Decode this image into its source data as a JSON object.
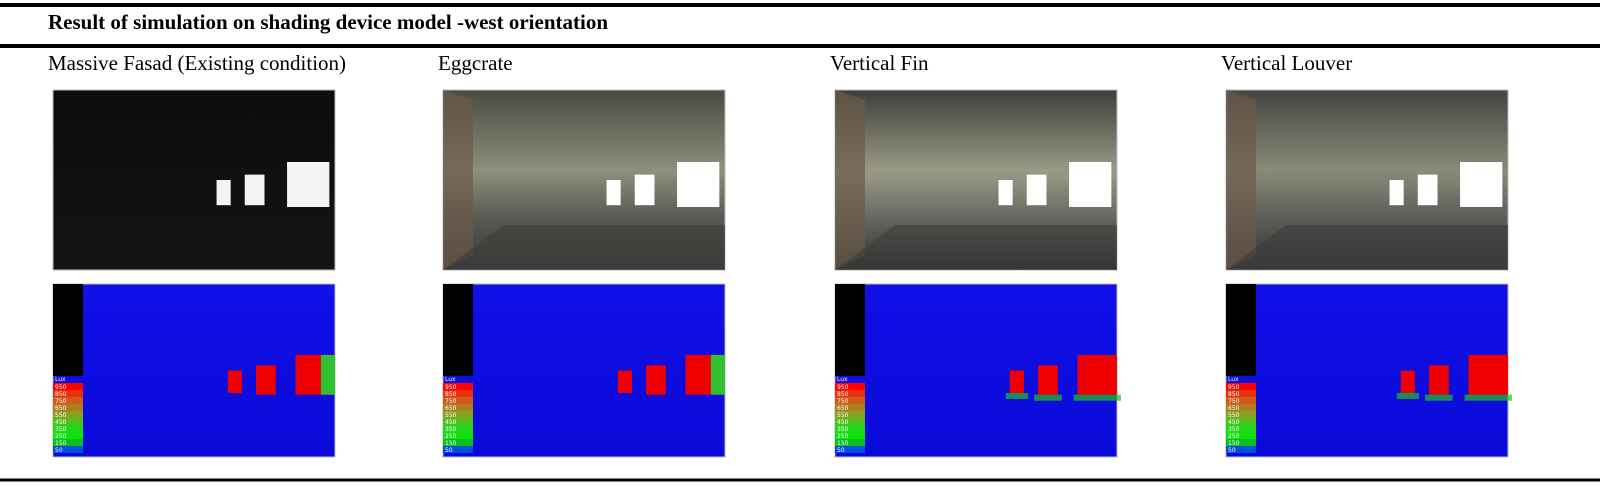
{
  "header": {
    "title": "Result of simulation on shading device model -west orientation"
  },
  "columns": [
    {
      "label": "Massive Fasad (Existing condition)"
    },
    {
      "label": "Eggcrate"
    },
    {
      "label": "Vertical Fin"
    },
    {
      "label": "Vertical Louver"
    }
  ],
  "legend": {
    "title": "Lux",
    "labels": [
      "950",
      "850",
      "750",
      "650",
      "550",
      "450",
      "350",
      "250",
      "150",
      "50"
    ]
  }
}
